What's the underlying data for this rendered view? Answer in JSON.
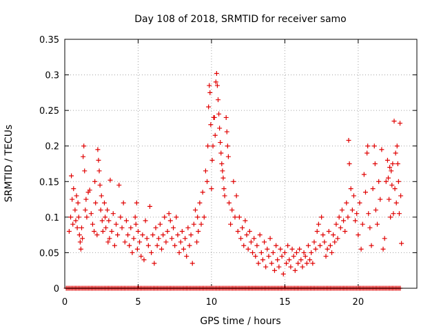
{
  "chart_data": {
    "type": "scatter",
    "title": "Day 108 of 2018, SRMTID for receiver samo",
    "xlabel": "GPS time / hours",
    "ylabel": "SRMTID / TECUs",
    "xlim": [
      0,
      24
    ],
    "ylim": [
      0,
      0.35
    ],
    "xticks": [
      0,
      5,
      10,
      15,
      20
    ],
    "yticks": [
      0,
      0.05,
      0.1,
      0.15,
      0.2,
      0.25,
      0.3,
      0.35
    ],
    "xtick_labels": [
      "0",
      "5",
      "10",
      "15",
      "20"
    ],
    "ytick_labels": [
      "0",
      "0.05",
      "0.1",
      "0.15",
      "0.2",
      "0.25",
      "0.3",
      "0.35"
    ],
    "grid": true,
    "marker": "+",
    "marker_color": "#e00000",
    "series": [
      {
        "name": "SRMTID",
        "points": [
          [
            0.3,
            0.08
          ],
          [
            0.4,
            0.1
          ],
          [
            0.45,
            0.158
          ],
          [
            0.5,
            0.125
          ],
          [
            0.55,
            0.09
          ],
          [
            0.6,
            0.14
          ],
          [
            0.7,
            0.11
          ],
          [
            0.75,
            0.095
          ],
          [
            0.8,
            0.13
          ],
          [
            0.85,
            0.085
          ],
          [
            0.9,
            0.12
          ],
          [
            0.95,
            0.1
          ],
          [
            1.0,
            0.075
          ],
          [
            1.05,
            0.065
          ],
          [
            1.1,
            0.055
          ],
          [
            1.15,
            0.085
          ],
          [
            1.2,
            0.07
          ],
          [
            1.25,
            0.185
          ],
          [
            1.3,
            0.2
          ],
          [
            1.35,
            0.165
          ],
          [
            1.4,
            0.11
          ],
          [
            1.45,
            0.125
          ],
          [
            1.5,
            0.1
          ],
          [
            1.6,
            0.135
          ],
          [
            1.7,
            0.138
          ],
          [
            1.8,
            0.105
          ],
          [
            1.9,
            0.09
          ],
          [
            2.0,
            0.08
          ],
          [
            2.05,
            0.15
          ],
          [
            2.1,
            0.12
          ],
          [
            2.2,
            0.075
          ],
          [
            2.25,
            0.195
          ],
          [
            2.3,
            0.18
          ],
          [
            2.35,
            0.165
          ],
          [
            2.4,
            0.145
          ],
          [
            2.45,
            0.11
          ],
          [
            2.5,
            0.13
          ],
          [
            2.55,
            0.095
          ],
          [
            2.6,
            0.08
          ],
          [
            2.7,
            0.12
          ],
          [
            2.75,
            0.1
          ],
          [
            2.8,
            0.085
          ],
          [
            2.9,
            0.11
          ],
          [
            2.95,
            0.065
          ],
          [
            3.0,
            0.095
          ],
          [
            3.05,
            0.07
          ],
          [
            3.1,
            0.152
          ],
          [
            3.2,
            0.08
          ],
          [
            3.3,
            0.105
          ],
          [
            3.4,
            0.06
          ],
          [
            3.5,
            0.09
          ],
          [
            3.6,
            0.075
          ],
          [
            3.7,
            0.145
          ],
          [
            3.8,
            0.1
          ],
          [
            3.9,
            0.085
          ],
          [
            4.0,
            0.12
          ],
          [
            4.1,
            0.065
          ],
          [
            4.2,
            0.095
          ],
          [
            4.3,
            0.075
          ],
          [
            4.4,
            0.06
          ],
          [
            4.5,
            0.085
          ],
          [
            4.6,
            0.05
          ],
          [
            4.7,
            0.07
          ],
          [
            4.8,
            0.1
          ],
          [
            4.85,
            0.09
          ],
          [
            4.9,
            0.12
          ],
          [
            4.95,
            0.055
          ],
          [
            5.0,
            0.08
          ],
          [
            5.1,
            0.065
          ],
          [
            5.2,
            0.045
          ],
          [
            5.3,
            0.075
          ],
          [
            5.4,
            0.04
          ],
          [
            5.5,
            0.095
          ],
          [
            5.6,
            0.07
          ],
          [
            5.7,
            0.06
          ],
          [
            5.8,
            0.115
          ],
          [
            5.9,
            0.05
          ],
          [
            6.0,
            0.075
          ],
          [
            6.1,
            0.035
          ],
          [
            6.2,
            0.085
          ],
          [
            6.3,
            0.06
          ],
          [
            6.4,
            0.07
          ],
          [
            6.5,
            0.09
          ],
          [
            6.6,
            0.055
          ],
          [
            6.7,
            0.075
          ],
          [
            6.8,
            0.1
          ],
          [
            6.9,
            0.065
          ],
          [
            7.0,
            0.08
          ],
          [
            7.1,
            0.105
          ],
          [
            7.2,
            0.095
          ],
          [
            7.3,
            0.07
          ],
          [
            7.4,
            0.085
          ],
          [
            7.5,
            0.06
          ],
          [
            7.6,
            0.1
          ],
          [
            7.7,
            0.075
          ],
          [
            7.8,
            0.05
          ],
          [
            7.9,
            0.065
          ],
          [
            8.0,
            0.08
          ],
          [
            8.1,
            0.055
          ],
          [
            8.2,
            0.07
          ],
          [
            8.3,
            0.045
          ],
          [
            8.4,
            0.085
          ],
          [
            8.5,
            0.06
          ],
          [
            8.6,
            0.075
          ],
          [
            8.7,
            0.035
          ],
          [
            8.8,
            0.09
          ],
          [
            8.9,
            0.11
          ],
          [
            9.0,
            0.065
          ],
          [
            9.05,
            0.1
          ],
          [
            9.1,
            0.08
          ],
          [
            9.2,
            0.12
          ],
          [
            9.3,
            0.09
          ],
          [
            9.4,
            0.135
          ],
          [
            9.5,
            0.1
          ],
          [
            9.6,
            0.165
          ],
          [
            9.7,
            0.15
          ],
          [
            9.75,
            0.2
          ],
          [
            9.8,
            0.255
          ],
          [
            9.85,
            0.285
          ],
          [
            9.9,
            0.275
          ],
          [
            9.95,
            0.23
          ],
          [
            10.0,
            0.14
          ],
          [
            10.05,
            0.18
          ],
          [
            10.1,
            0.2
          ],
          [
            10.15,
            0.24
          ],
          [
            10.2,
            0.24
          ],
          [
            10.25,
            0.215
          ],
          [
            10.3,
            0.29
          ],
          [
            10.35,
            0.302
          ],
          [
            10.4,
            0.285
          ],
          [
            10.45,
            0.265
          ],
          [
            10.5,
            0.245
          ],
          [
            10.55,
            0.225
          ],
          [
            10.6,
            0.205
          ],
          [
            10.65,
            0.19
          ],
          [
            10.7,
            0.175
          ],
          [
            10.75,
            0.165
          ],
          [
            10.8,
            0.155
          ],
          [
            10.85,
            0.14
          ],
          [
            10.9,
            0.13
          ],
          [
            11.0,
            0.24
          ],
          [
            11.05,
            0.22
          ],
          [
            11.1,
            0.2
          ],
          [
            11.15,
            0.185
          ],
          [
            11.2,
            0.12
          ],
          [
            11.3,
            0.09
          ],
          [
            11.4,
            0.11
          ],
          [
            11.5,
            0.15
          ],
          [
            11.6,
            0.1
          ],
          [
            11.7,
            0.13
          ],
          [
            11.8,
            0.08
          ],
          [
            11.9,
            0.1
          ],
          [
            12.0,
            0.07
          ],
          [
            12.1,
            0.085
          ],
          [
            12.2,
            0.06
          ],
          [
            12.3,
            0.095
          ],
          [
            12.4,
            0.075
          ],
          [
            12.5,
            0.055
          ],
          [
            12.6,
            0.08
          ],
          [
            12.7,
            0.065
          ],
          [
            12.8,
            0.05
          ],
          [
            12.9,
            0.07
          ],
          [
            13.0,
            0.045
          ],
          [
            13.1,
            0.06
          ],
          [
            13.2,
            0.035
          ],
          [
            13.3,
            0.075
          ],
          [
            13.4,
            0.05
          ],
          [
            13.5,
            0.04
          ],
          [
            13.6,
            0.065
          ],
          [
            13.7,
            0.03
          ],
          [
            13.8,
            0.055
          ],
          [
            13.9,
            0.045
          ],
          [
            14.0,
            0.07
          ],
          [
            14.1,
            0.035
          ],
          [
            14.2,
            0.05
          ],
          [
            14.3,
            0.025
          ],
          [
            14.4,
            0.06
          ],
          [
            14.5,
            0.04
          ],
          [
            14.6,
            0.03
          ],
          [
            14.7,
            0.055
          ],
          [
            14.8,
            0.045
          ],
          [
            14.9,
            0.02
          ],
          [
            15.0,
            0.05
          ],
          [
            15.1,
            0.035
          ],
          [
            15.2,
            0.06
          ],
          [
            15.3,
            0.04
          ],
          [
            15.4,
            0.03
          ],
          [
            15.5,
            0.055
          ],
          [
            15.6,
            0.045
          ],
          [
            15.7,
            0.025
          ],
          [
            15.8,
            0.05
          ],
          [
            15.9,
            0.035
          ],
          [
            16.0,
            0.055
          ],
          [
            16.1,
            0.04
          ],
          [
            16.2,
            0.03
          ],
          [
            16.3,
            0.05
          ],
          [
            16.4,
            0.045
          ],
          [
            16.5,
            0.035
          ],
          [
            16.6,
            0.06
          ],
          [
            16.7,
            0.04
          ],
          [
            16.8,
            0.05
          ],
          [
            16.9,
            0.035
          ],
          [
            17.0,
            0.065
          ],
          [
            17.1,
            0.055
          ],
          [
            17.2,
            0.08
          ],
          [
            17.3,
            0.09
          ],
          [
            17.4,
            0.06
          ],
          [
            17.5,
            0.1
          ],
          [
            17.6,
            0.075
          ],
          [
            17.7,
            0.065
          ],
          [
            17.8,
            0.045
          ],
          [
            17.9,
            0.055
          ],
          [
            18.0,
            0.08
          ],
          [
            18.1,
            0.06
          ],
          [
            18.2,
            0.05
          ],
          [
            18.3,
            0.075
          ],
          [
            18.4,
            0.065
          ],
          [
            18.5,
            0.09
          ],
          [
            18.6,
            0.07
          ],
          [
            18.7,
            0.1
          ],
          [
            18.8,
            0.085
          ],
          [
            18.9,
            0.11
          ],
          [
            19.0,
            0.095
          ],
          [
            19.1,
            0.08
          ],
          [
            19.2,
            0.12
          ],
          [
            19.3,
            0.1
          ],
          [
            19.35,
            0.208
          ],
          [
            19.4,
            0.175
          ],
          [
            19.5,
            0.14
          ],
          [
            19.6,
            0.11
          ],
          [
            19.7,
            0.13
          ],
          [
            19.8,
            0.095
          ],
          [
            19.9,
            0.105
          ],
          [
            20.0,
            0.075
          ],
          [
            20.1,
            0.12
          ],
          [
            20.2,
            0.055
          ],
          [
            20.3,
            0.09
          ],
          [
            20.4,
            0.16
          ],
          [
            20.5,
            0.135
          ],
          [
            20.6,
            0.19
          ],
          [
            20.65,
            0.2
          ],
          [
            20.7,
            0.105
          ],
          [
            20.8,
            0.085
          ],
          [
            20.9,
            0.06
          ],
          [
            21.0,
            0.14
          ],
          [
            21.1,
            0.2
          ],
          [
            21.15,
            0.175
          ],
          [
            21.2,
            0.11
          ],
          [
            21.3,
            0.09
          ],
          [
            21.4,
            0.15
          ],
          [
            21.5,
            0.125
          ],
          [
            21.6,
            0.195
          ],
          [
            21.7,
            0.055
          ],
          [
            21.8,
            0.07
          ],
          [
            21.9,
            0.15
          ],
          [
            22.0,
            0.18
          ],
          [
            22.05,
            0.155
          ],
          [
            22.1,
            0.125
          ],
          [
            22.15,
            0.17
          ],
          [
            22.2,
            0.1
          ],
          [
            22.25,
            0.165
          ],
          [
            22.3,
            0.145
          ],
          [
            22.35,
            0.175
          ],
          [
            22.4,
            0.105
          ],
          [
            22.45,
            0.235
          ],
          [
            22.5,
            0.14
          ],
          [
            22.55,
            0.19
          ],
          [
            22.6,
            0.12
          ],
          [
            22.65,
            0.2
          ],
          [
            22.7,
            0.175
          ],
          [
            22.75,
            0.15
          ],
          [
            22.8,
            0.105
          ],
          [
            22.85,
            0.232
          ],
          [
            22.9,
            0.13
          ],
          [
            22.95,
            0.063
          ]
        ]
      },
      {
        "name": "zero-level",
        "baseline_value": 0,
        "x_start": 0.1,
        "x_end": 22.9,
        "x_step": 0.09
      }
    ]
  }
}
